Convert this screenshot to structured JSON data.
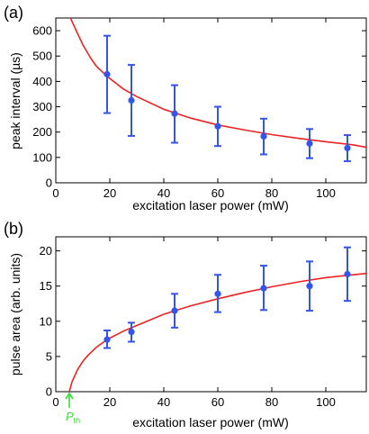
{
  "chart_data": [
    {
      "type": "scatter",
      "panel_label": "(a)",
      "xlabel": "excitation laser power (mW)",
      "ylabel": "peak interval (µs)",
      "xlim": [
        0,
        115
      ],
      "ylim": [
        0,
        650
      ],
      "xticks": [
        0,
        20,
        40,
        60,
        80,
        100
      ],
      "yticks": [
        0,
        100,
        200,
        300,
        400,
        500,
        600
      ],
      "grid": false,
      "marker_color": "#3355ee",
      "fit_color": "#ee2222",
      "series": [
        {
          "x": [
            19,
            28,
            44,
            60,
            77,
            94,
            108
          ],
          "y": [
            428,
            325,
            273,
            223,
            183,
            155,
            137
          ],
          "yerr_low": [
            275,
            185,
            158,
            145,
            112,
            97,
            85
          ],
          "yerr_high": [
            580,
            465,
            385,
            300,
            253,
            212,
            188
          ]
        }
      ],
      "fit": {
        "x": [
          5,
          8,
          10,
          13,
          15,
          19,
          25,
          30,
          40,
          50,
          60,
          70,
          80,
          90,
          100,
          110,
          115
        ],
        "y": [
          660,
          590,
          545,
          490,
          460,
          420,
          370,
          340,
          290,
          255,
          228,
          208,
          190,
          175,
          162,
          150,
          140
        ]
      }
    },
    {
      "type": "scatter",
      "panel_label": "(b)",
      "xlabel": "excitation laser power (mW)",
      "ylabel": "pulse area (arb. units)",
      "xlim": [
        0,
        115
      ],
      "ylim": [
        0,
        22
      ],
      "xticks": [
        0,
        20,
        40,
        60,
        80,
        100
      ],
      "yticks": [
        0,
        5,
        10,
        15,
        20
      ],
      "grid": false,
      "marker_color": "#3355ee",
      "fit_color": "#ee2222",
      "series": [
        {
          "x": [
            19,
            28,
            44,
            60,
            77,
            94,
            108
          ],
          "y": [
            7.4,
            8.5,
            11.5,
            13.9,
            14.7,
            15.0,
            16.7
          ],
          "yerr_low": [
            6.2,
            7.1,
            9.1,
            11.3,
            11.6,
            11.5,
            12.9
          ],
          "yerr_high": [
            8.7,
            9.8,
            13.9,
            16.6,
            17.9,
            18.5,
            20.5
          ]
        }
      ],
      "fit": {
        "x": [
          5,
          6,
          8,
          10,
          12,
          15,
          19,
          25,
          30,
          40,
          50,
          60,
          70,
          80,
          90,
          100,
          110,
          115
        ],
        "y": [
          0,
          1.4,
          3.1,
          4.3,
          5.2,
          6.3,
          7.4,
          8.6,
          9.4,
          11.0,
          12.2,
          13.2,
          14.1,
          14.9,
          15.6,
          16.2,
          16.6,
          16.8
        ]
      },
      "annotation": {
        "label": "P",
        "subscript": "th",
        "x": 5,
        "color": "#33dd33"
      }
    }
  ]
}
